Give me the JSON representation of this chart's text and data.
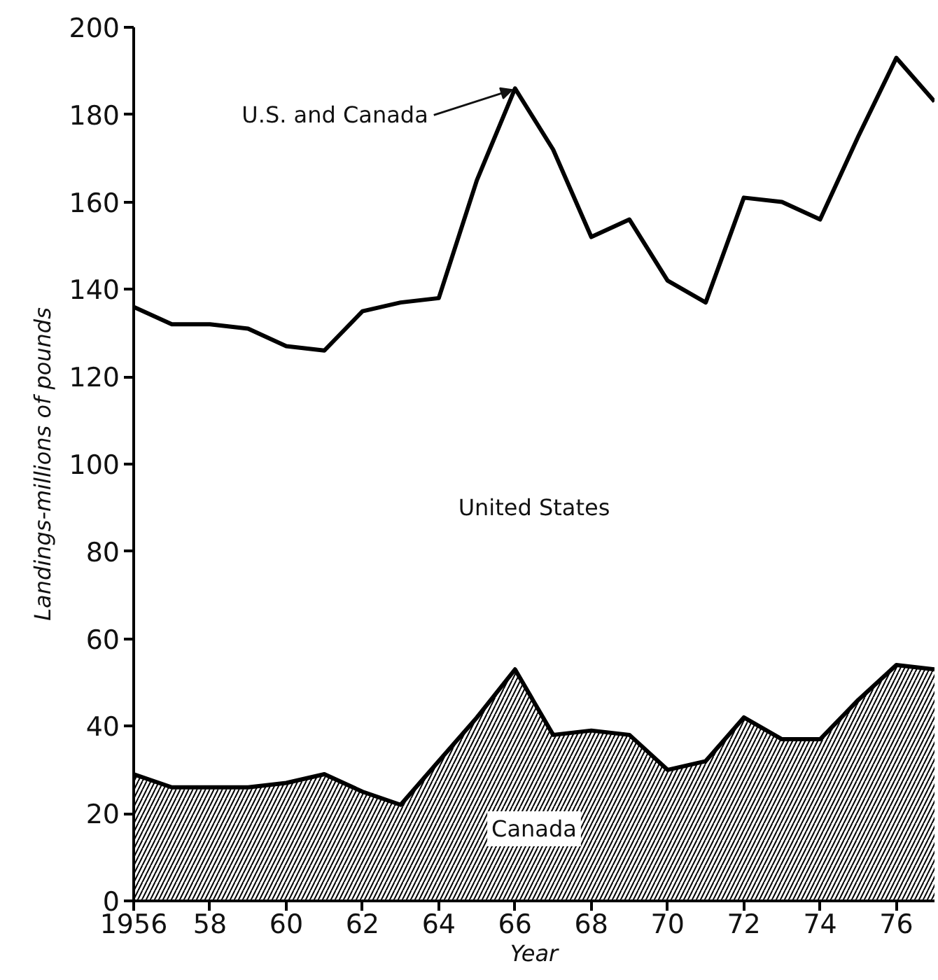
{
  "chart_data": {
    "type": "line",
    "xlabel": "Year",
    "ylabel": "Landings-millions of pounds",
    "x": [
      1956,
      1957,
      1958,
      1959,
      1960,
      1961,
      1962,
      1963,
      1964,
      1965,
      1966,
      1967,
      1968,
      1969,
      1970,
      1971,
      1972,
      1973,
      1974,
      1975,
      1976,
      1977
    ],
    "series": [
      {
        "color": "#000000",
        "values": [
          136,
          132,
          132,
          131,
          127,
          126,
          135,
          137,
          138,
          165,
          186,
          172,
          152,
          156,
          142,
          137,
          161,
          160,
          156,
          175,
          193,
          183
        ]
      },
      {
        "name": "Canada",
        "type": "area",
        "color": "#000000",
        "values": [
          29,
          26,
          26,
          26,
          27,
          29,
          25,
          22,
          32,
          42,
          53,
          38,
          39,
          38,
          30,
          32,
          42,
          37,
          37,
          46,
          54,
          53
        ]
      }
    ],
    "annotations": [
      {
        "text": "U.S. and Canada",
        "x": 1966,
        "y": 186
      },
      "United States"
    ],
    "xlim": [
      1956,
      1977
    ],
    "ylim": [
      0,
      200
    ],
    "xticks": [
      1956,
      {
        "value": 1958,
        "label": "58"
      },
      {
        "value": 1960,
        "label": "60"
      },
      {
        "value": 1962,
        "label": "62"
      },
      {
        "value": 1964,
        "label": "64"
      },
      {
        "value": 1966,
        "label": "66"
      },
      {
        "value": 1968,
        "label": "68"
      },
      {
        "value": 1970,
        "label": "70"
      },
      {
        "value": 1972,
        "label": "72"
      },
      {
        "value": 1974,
        "label": "74"
      },
      {
        "value": 1976,
        "label": "76"
      }
    ],
    "yticks": [
      0,
      20,
      40,
      60,
      80,
      100,
      120,
      140,
      160,
      180,
      200
    ],
    "grid": false
  }
}
